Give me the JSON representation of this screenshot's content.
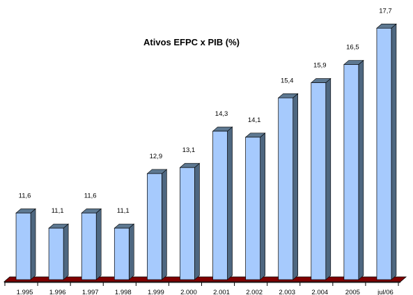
{
  "chart_data": {
    "type": "bar",
    "title": "Ativos EFPC x PIB (%)",
    "categories": [
      "1.995",
      "1.996",
      "1.997",
      "1.998",
      "1.999",
      "2.000",
      "2.001",
      "2.002",
      "2.003",
      "2.004",
      "2005",
      "jul/06"
    ],
    "values": [
      11.6,
      11.1,
      11.6,
      11.1,
      12.9,
      13.1,
      14.3,
      14.1,
      15.4,
      15.9,
      16.5,
      17.7
    ],
    "value_labels": [
      "11,6",
      "11,1",
      "11,6",
      "11,1",
      "12,9",
      "13,1",
      "14,3",
      "14,1",
      "15,4",
      "15,9",
      "16,5",
      "17,7"
    ],
    "xlabel": "",
    "ylabel": "",
    "ylim": [
      9.4,
      17.8
    ],
    "grid": false,
    "legend": "none",
    "colors": {
      "bar_front": "#a6cafd",
      "bar_side": "#4e6780",
      "bar_top": "#5d7891",
      "floor": "#800000",
      "floor_edge": "#000000"
    }
  }
}
